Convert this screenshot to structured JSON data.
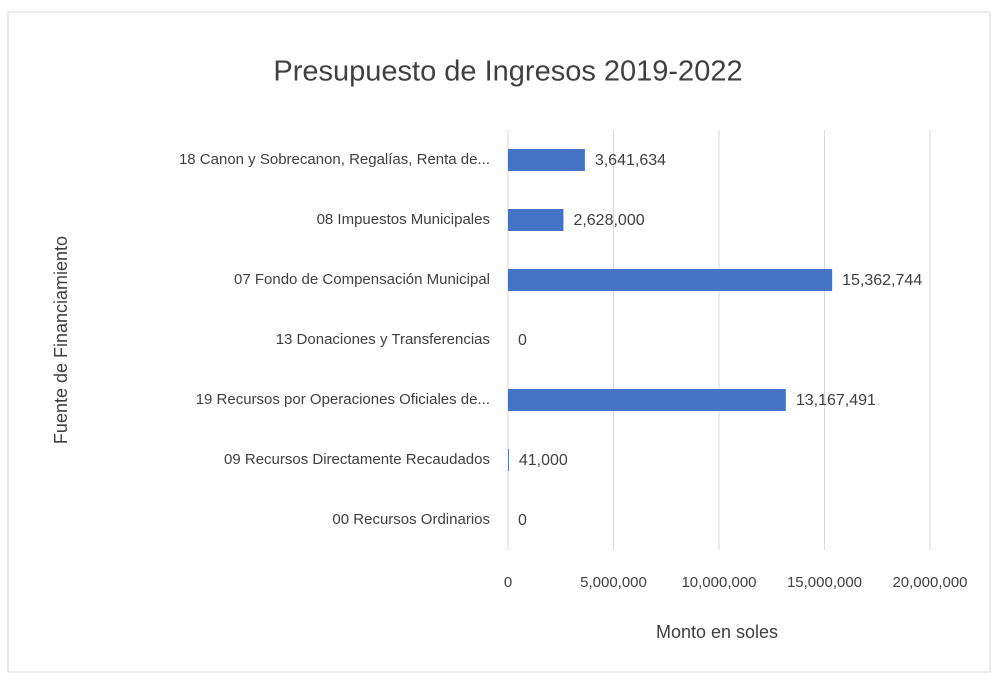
{
  "chart_data": {
    "type": "hbar",
    "title": "Presupuesto de Ingresos 2019-2022",
    "xlabel": "Monto en soles",
    "ylabel": "Fuente de Financiamiento",
    "categories": [
      "18 Canon y Sobrecanon, Regalías, Renta de...",
      "08 Impuestos Municipales",
      "07 Fondo de Compensación Municipal",
      "13 Donaciones y Transferencias",
      "19 Recursos por Operaciones Oficiales de...",
      "09 Recursos Directamente Recaudados",
      "00 Recursos Ordinarios"
    ],
    "values": [
      3641634,
      2628000,
      15362744,
      0,
      13167491,
      41000,
      0
    ],
    "value_labels": [
      "3,641,634",
      "2,628,000",
      "15,362,744",
      "0",
      "13,167,491",
      "41,000",
      "0"
    ],
    "color": "#4472c4",
    "xlim": [
      0,
      20000000
    ],
    "xticks": [
      0,
      {
        "value": 5000000,
        "label": "5,000,000"
      },
      {
        "value": 10000000,
        "label": "10,000,000"
      },
      {
        "value": 15000000,
        "label": "15,000,000"
      },
      {
        "value": 20000000,
        "label": "20,000,000"
      }
    ],
    "grid": true
  }
}
